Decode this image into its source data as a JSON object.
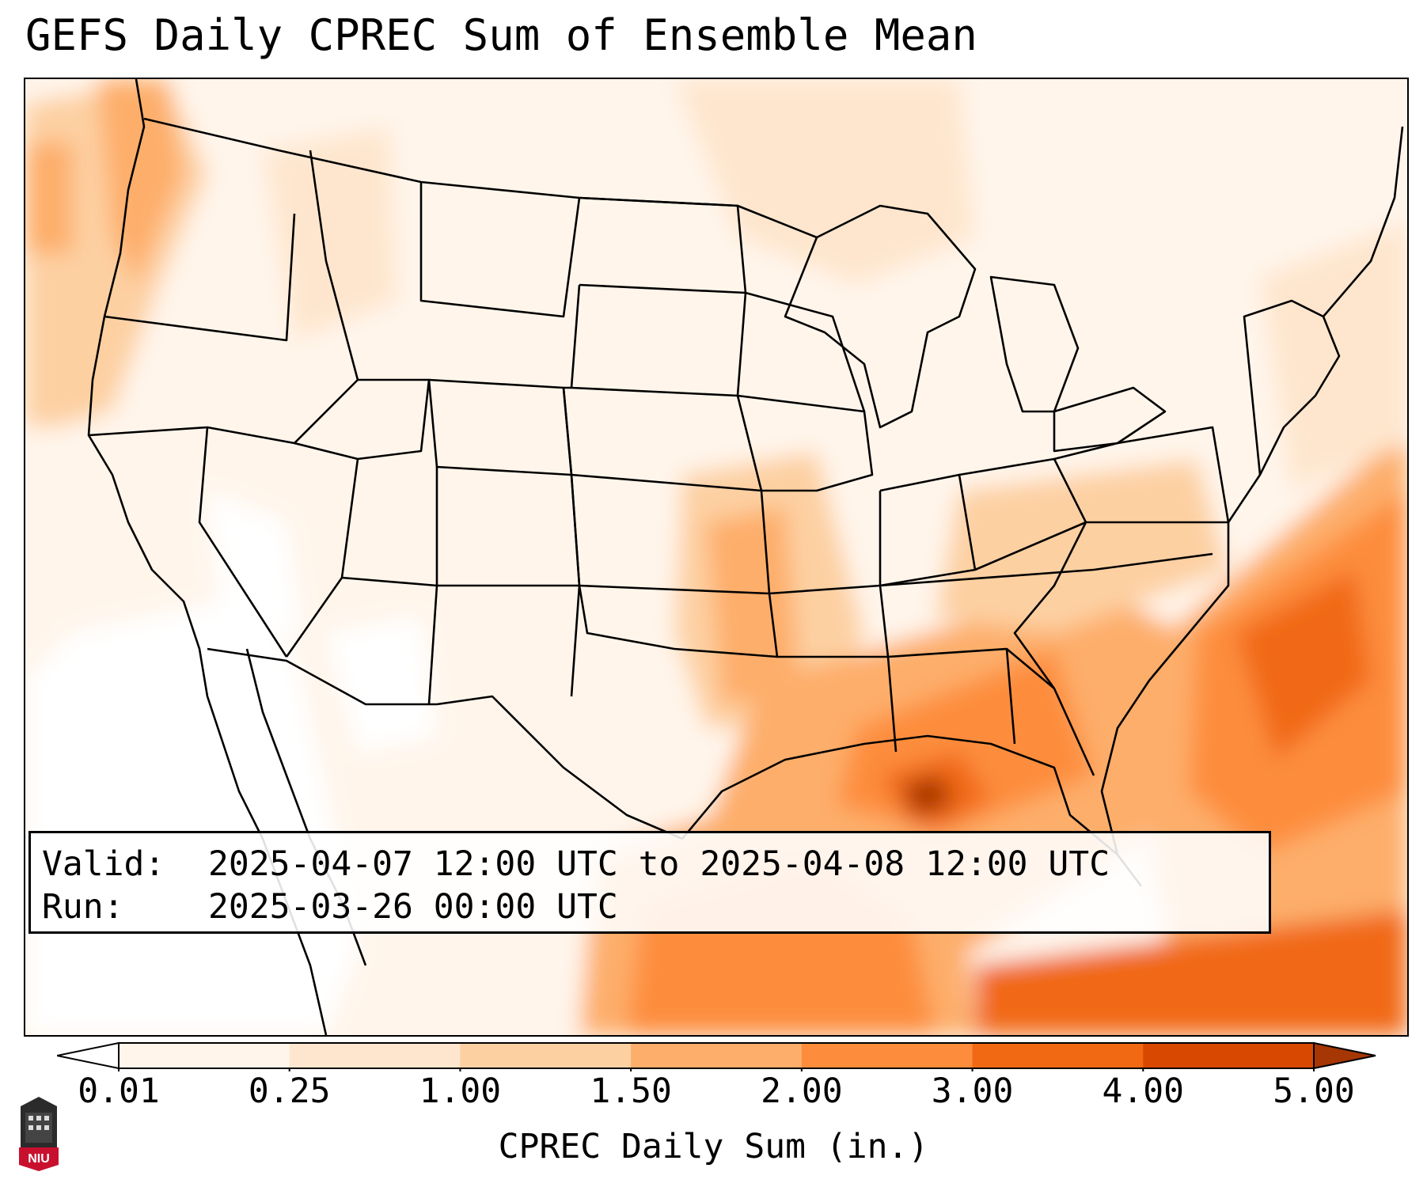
{
  "title": "GEFS Daily CPREC Sum of Ensemble Mean",
  "info": {
    "valid_label": "Valid:",
    "valid_value": "2025-04-07 12:00 UTC to 2025-04-08 12:00 UTC",
    "run_label": "Run:",
    "run_value": "2025-03-26 00:00 UTC"
  },
  "colorbar": {
    "label": "CPREC Daily Sum (in.)",
    "ticks": [
      "0.01",
      "0.25",
      "1.00",
      "1.50",
      "2.00",
      "3.00",
      "4.00",
      "5.00"
    ],
    "colors": [
      "#fff5eb",
      "#fee6ce",
      "#fdd0a2",
      "#fdae6b",
      "#fd8d3c",
      "#f16913",
      "#d94801",
      "#a63603"
    ],
    "under_color": "#ffffff",
    "over_color": "#7f2704"
  },
  "logo": {
    "text": "NIU",
    "color": "#c8102e"
  }
}
